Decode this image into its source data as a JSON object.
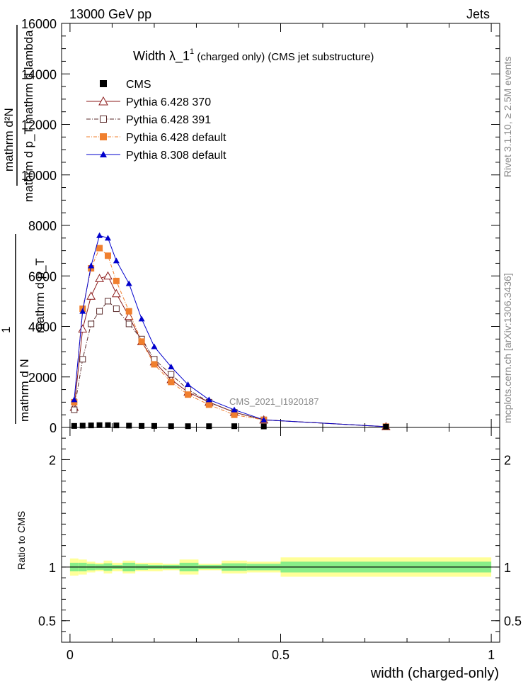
{
  "header": {
    "left": "13000 GeV pp",
    "right": "Jets"
  },
  "side": {
    "top": "Rivet 3.1.10, ≥ 2.5M events",
    "bottom": "mcplots.cern.ch [arXiv:1306.3436]"
  },
  "main_plot": {
    "title": "Width λ_1",
    "title_sup": "1",
    "title_rest": " (charged only) (CMS jet substructure)",
    "ylabel_numer": "mathrm d²N",
    "ylabel_denom": "mathrm d p_T mathrm d lambda",
    "ylabel_prefix": "1",
    "ylabel_frac_numer": "mathrm d N",
    "ylabel_frac_denom": "mathrm d p_T",
    "watermark": "CMS_2021_I1920187"
  },
  "ratio_plot": {
    "ylabel": "Ratio to CMS"
  },
  "xlabel": "width (charged-only)",
  "colors": {
    "cms": "#000000",
    "p370": "#8b1a1a",
    "p391": "#5a2a2a",
    "p6def": "#f07f2e",
    "p8def": "#0000cc",
    "band_inner": "#88ee88",
    "band_outer": "#ffff99"
  },
  "chart_data": {
    "type": "line",
    "x": [
      0.01,
      0.03,
      0.05,
      0.07,
      0.09,
      0.11,
      0.14,
      0.17,
      0.2,
      0.24,
      0.28,
      0.33,
      0.39,
      0.46,
      0.75
    ],
    "xlim": [
      -0.02,
      1.02
    ],
    "ylim": [
      0,
      16000
    ],
    "yticks": [
      0,
      2000,
      4000,
      6000,
      8000,
      10000,
      12000,
      14000,
      16000
    ],
    "xticks": [
      0,
      0.5,
      1
    ],
    "series": [
      {
        "name": "CMS",
        "marker": "filled-square",
        "values": [
          60,
          70,
          80,
          90,
          90,
          80,
          70,
          60,
          60,
          50,
          50,
          50,
          50,
          40,
          30
        ]
      },
      {
        "name": "Pythia 6.428 370",
        "marker": "open-triangle",
        "values": [
          800,
          3900,
          5200,
          5900,
          6000,
          5300,
          4400,
          3400,
          2600,
          1900,
          1400,
          1000,
          600,
          300,
          30
        ]
      },
      {
        "name": "Pythia 6.428 391",
        "marker": "open-square",
        "values": [
          700,
          2700,
          4100,
          4600,
          5000,
          4700,
          4100,
          3500,
          2700,
          2100,
          1500,
          1000,
          600,
          300,
          30
        ]
      },
      {
        "name": "Pythia 6.428 default",
        "marker": "filled-square",
        "values": [
          1000,
          4700,
          6300,
          7100,
          6800,
          5800,
          4600,
          3400,
          2500,
          1800,
          1300,
          900,
          500,
          300,
          30
        ]
      },
      {
        "name": "Pythia 8.308 default",
        "marker": "filled-triangle",
        "values": [
          1100,
          4600,
          6400,
          7600,
          7500,
          6600,
          5700,
          4300,
          3200,
          2400,
          1700,
          1100,
          700,
          300,
          30
        ]
      }
    ],
    "ratio": {
      "ylim": [
        0.3,
        2.3
      ],
      "yticks": [
        0.5,
        1,
        2
      ],
      "bins": [
        [
          0.0,
          0.02
        ],
        [
          0.02,
          0.04
        ],
        [
          0.04,
          0.06
        ],
        [
          0.06,
          0.08
        ],
        [
          0.08,
          0.1
        ],
        [
          0.1,
          0.125
        ],
        [
          0.125,
          0.155
        ],
        [
          0.155,
          0.185
        ],
        [
          0.185,
          0.22
        ],
        [
          0.22,
          0.26
        ],
        [
          0.26,
          0.305
        ],
        [
          0.305,
          0.36
        ],
        [
          0.36,
          0.42
        ],
        [
          0.42,
          0.5
        ],
        [
          0.5,
          1.0
        ]
      ],
      "inner": [
        0.04,
        0.04,
        0.03,
        0.025,
        0.035,
        0.02,
        0.04,
        0.025,
        0.02,
        0.02,
        0.04,
        0.02,
        0.035,
        0.03,
        0.05
      ],
      "outer": [
        0.08,
        0.07,
        0.05,
        0.04,
        0.06,
        0.04,
        0.06,
        0.04,
        0.04,
        0.03,
        0.07,
        0.03,
        0.06,
        0.05,
        0.09
      ]
    }
  }
}
